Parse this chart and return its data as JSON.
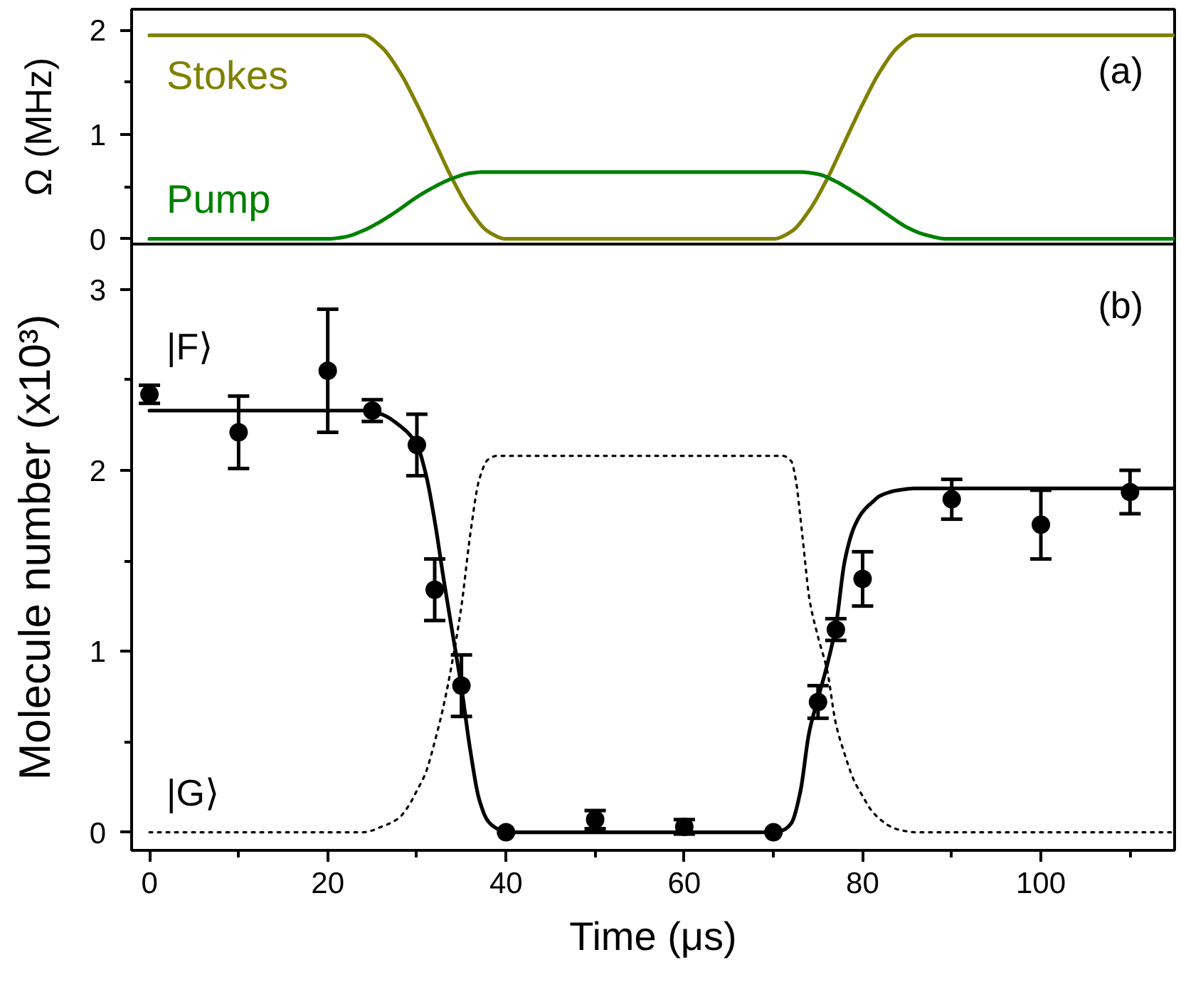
{
  "chart_data": [
    {
      "type": "line",
      "ylabel": "Ω (MHz)",
      "annotations": [
        "(a)"
      ],
      "xlim": [
        -2,
        115
      ],
      "ylim": [
        -0.05,
        2.2
      ],
      "yticks": [
        0,
        {
          "value": 0.5,
          "label": null
        },
        1,
        {
          "value": 1.5,
          "label": null
        },
        2
      ],
      "tick_labels": "y",
      "line_style": "solid",
      "series": [
        {
          "name": "Stokes",
          "color": "#808000",
          "x": [
            0,
            22,
            24,
            26,
            28,
            30,
            32,
            34,
            36,
            38,
            40,
            70,
            72,
            74,
            76,
            78,
            80,
            82,
            84,
            86,
            115
          ],
          "values": [
            1.95,
            1.95,
            1.95,
            1.84,
            1.61,
            1.29,
            0.93,
            0.57,
            0.27,
            0.07,
            0,
            0,
            0.07,
            0.27,
            0.57,
            0.93,
            1.29,
            1.61,
            1.84,
            1.95,
            1.95
          ]
        },
        {
          "name": "Pump",
          "color": "#008000",
          "x": [
            0,
            20,
            22,
            24,
            26,
            28,
            30,
            32,
            34,
            36,
            37.5,
            73,
            75,
            77,
            79,
            81,
            83,
            85,
            87,
            89.5,
            115
          ],
          "values": [
            0,
            0,
            0.02,
            0.08,
            0.17,
            0.28,
            0.4,
            0.5,
            0.58,
            0.63,
            0.64,
            0.64,
            0.62,
            0.55,
            0.45,
            0.34,
            0.22,
            0.11,
            0.04,
            0,
            0
          ]
        }
      ]
    },
    {
      "type": "scatter",
      "xlabel": "Time (μs)",
      "ylabel": "Molecule number (x10³)",
      "annotations": [
        "(b)"
      ],
      "xlim": [
        -2,
        115
      ],
      "ylim": [
        -0.1,
        3.25
      ],
      "xticks": [
        0,
        {
          "value": 10,
          "label": null
        },
        20,
        {
          "value": 30,
          "label": null
        },
        40,
        {
          "value": 50,
          "label": null
        },
        60,
        {
          "value": 70,
          "label": null
        },
        80,
        {
          "value": 90,
          "label": null
        },
        100,
        {
          "value": 110,
          "label": null
        }
      ],
      "yticks": [
        0,
        {
          "value": 0.5,
          "label": null
        },
        1,
        {
          "value": 1.5,
          "label": null
        },
        2,
        {
          "value": 2.5,
          "label": null
        },
        3
      ],
      "series": [
        {
          "type": "scatter",
          "color": "#000000",
          "marker": "circle",
          "x": [
            0,
            10,
            20,
            25,
            30,
            32,
            35,
            40,
            50,
            60,
            70,
            75,
            77,
            80,
            90,
            100,
            110
          ],
          "values": [
            2.42,
            2.21,
            2.55,
            2.33,
            2.14,
            1.34,
            0.81,
            0.0,
            0.07,
            0.03,
            0.0,
            0.72,
            1.12,
            1.4,
            1.84,
            1.7,
            1.88
          ],
          "errors": [
            0.05,
            0.2,
            0.34,
            0.06,
            0.17,
            0.17,
            0.17,
            null,
            0.05,
            0.04,
            null,
            0.09,
            0.06,
            0.15,
            0.11,
            0.19,
            0.12
          ]
        },
        {
          "type": "line",
          "name": "|F⟩",
          "color": "#000000",
          "line_style": "solid",
          "x": [
            0,
            24,
            26,
            28,
            30,
            31,
            32,
            33,
            34,
            35,
            36,
            37,
            38,
            39,
            40,
            70,
            71,
            72,
            73,
            74,
            75,
            76,
            77,
            78,
            79,
            80,
            81,
            82,
            84,
            86,
            115
          ],
          "values": [
            2.33,
            2.33,
            2.31,
            2.25,
            2.14,
            1.98,
            1.72,
            1.4,
            1.1,
            0.8,
            0.45,
            0.18,
            0.06,
            0.02,
            0,
            0,
            0.01,
            0.05,
            0.22,
            0.55,
            0.74,
            0.92,
            1.14,
            1.5,
            1.68,
            1.77,
            1.82,
            1.86,
            1.89,
            1.9,
            1.9
          ]
        },
        {
          "type": "line",
          "name": "|G⟩",
          "color": "#000000",
          "line_style": "dotted",
          "x": [
            0,
            24,
            25,
            26,
            27,
            28,
            29,
            30,
            31,
            32,
            33,
            34,
            35,
            36,
            37,
            38,
            39,
            71,
            72,
            72.5,
            73,
            73.5,
            74,
            75,
            76,
            77,
            78,
            79,
            80,
            81,
            82,
            83,
            84,
            86,
            115
          ],
          "values": [
            0,
            0,
            0.01,
            0.03,
            0.05,
            0.08,
            0.14,
            0.23,
            0.33,
            0.5,
            0.7,
            0.95,
            1.25,
            1.65,
            1.95,
            2.06,
            2.08,
            2.08,
            2.05,
            1.95,
            1.75,
            1.52,
            1.3,
            1.08,
            0.9,
            0.6,
            0.43,
            0.29,
            0.2,
            0.12,
            0.07,
            0.035,
            0.015,
            0,
            0
          ]
        }
      ]
    }
  ]
}
